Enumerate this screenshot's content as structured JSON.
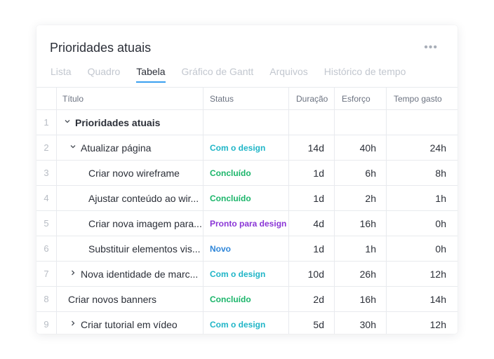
{
  "header": {
    "title": "Prioridades atuais",
    "more_label": "•••"
  },
  "tabs": [
    {
      "label": "Lista",
      "active": false
    },
    {
      "label": "Quadro",
      "active": false
    },
    {
      "label": "Tabela",
      "active": true
    },
    {
      "label": "Gráfico de Gantt",
      "active": false
    },
    {
      "label": "Arquivos",
      "active": false
    },
    {
      "label": "Histórico de tempo",
      "active": false
    }
  ],
  "columns": {
    "title": "Título",
    "status": "Status",
    "duration": "Duração",
    "effort": "Esforço",
    "time_spent": "Tempo gasto"
  },
  "colors": {
    "accent": "#3aa0f0",
    "com_o_design": "#1fb5c7",
    "concluido": "#1bb56a",
    "pronto": "#8a35d6",
    "novo": "#2f86d9"
  },
  "rows": [
    {
      "num": "1",
      "title": "Prioridades atuais",
      "indent": 0,
      "chevron": "down",
      "status": "",
      "duration": "",
      "effort": "",
      "time_spent": "",
      "bold": true
    },
    {
      "num": "2",
      "title": "Atualizar página",
      "indent": 1,
      "chevron": "down",
      "status": "Com o design",
      "status_key": "com_o_design",
      "duration": "14d",
      "effort": "40h",
      "time_spent": "24h"
    },
    {
      "num": "3",
      "title": "Criar novo wireframe",
      "indent": 2,
      "chevron": "",
      "status": "Concluído",
      "status_key": "concluido",
      "duration": "1d",
      "effort": "6h",
      "time_spent": "8h"
    },
    {
      "num": "4",
      "title": "Ajustar conteúdo ao wir...",
      "indent": 2,
      "chevron": "",
      "status": "Concluído",
      "status_key": "concluido",
      "duration": "1d",
      "effort": "2h",
      "time_spent": "1h"
    },
    {
      "num": "5",
      "title": "Criar nova imagem para...",
      "indent": 2,
      "chevron": "",
      "status": "Pronto para design",
      "status_key": "pronto",
      "duration": "4d",
      "effort": "16h",
      "time_spent": "0h"
    },
    {
      "num": "6",
      "title": "Substituir elementos vis...",
      "indent": 2,
      "chevron": "",
      "status": "Novo",
      "status_key": "novo",
      "duration": "1d",
      "effort": "1h",
      "time_spent": "0h"
    },
    {
      "num": "7",
      "title": "Nova identidade de marc...",
      "indent": 1,
      "chevron": "right",
      "status": "Com o design",
      "status_key": "com_o_design",
      "duration": "10d",
      "effort": "26h",
      "time_spent": "12h"
    },
    {
      "num": "8",
      "title": "Criar novos banners",
      "indent": 1,
      "chevron": "",
      "status": "Concluído",
      "status_key": "concluido",
      "duration": "2d",
      "effort": "16h",
      "time_spent": "14h"
    },
    {
      "num": "9",
      "title": "Criar tutorial em vídeo",
      "indent": 1,
      "chevron": "right",
      "status": "Com o design",
      "status_key": "com_o_design",
      "duration": "5d",
      "effort": "30h",
      "time_spent": "12h"
    }
  ]
}
